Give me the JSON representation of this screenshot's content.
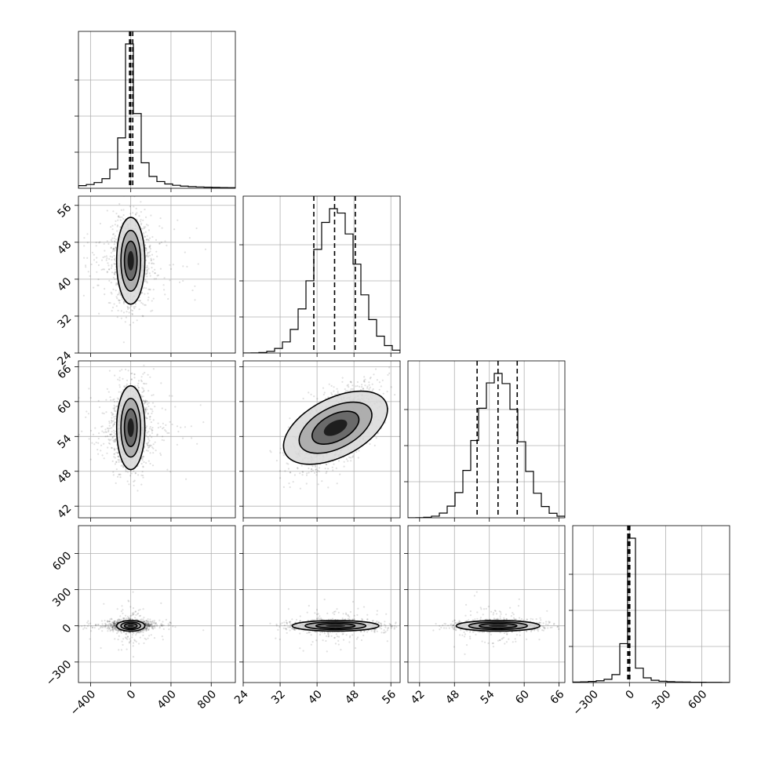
{
  "chart_data": {
    "type": "corner",
    "grid": true,
    "dimensions": [
      {
        "range": [
          -520,
          1040
        ],
        "ticks": [
          -400,
          0,
          400,
          800
        ],
        "tick_labels": [
          "−400",
          "0",
          "400",
          "800"
        ],
        "center": 0,
        "sigma": 70,
        "quantiles": [
          -12,
          0,
          20
        ]
      },
      {
        "range": [
          24,
          58
        ],
        "ticks": [
          24,
          32,
          40,
          48,
          56
        ],
        "tick_labels": [
          "24",
          "32",
          "40",
          "48",
          "56"
        ],
        "center": 44,
        "sigma": 4.7,
        "quantiles": [
          39.3,
          43.8,
          48.3
        ]
      },
      {
        "range": [
          40,
          67
        ],
        "ticks": [
          42,
          48,
          54,
          60,
          66
        ],
        "tick_labels": [
          "42",
          "48",
          "54",
          "60",
          "66"
        ],
        "center": 55.5,
        "sigma": 3.6,
        "quantiles": [
          51.9,
          55.5,
          58.8
        ]
      },
      {
        "range": [
          -470,
          830
        ],
        "ticks": [
          -300,
          0,
          300,
          600
        ],
        "tick_labels": [
          "−300",
          "0",
          "300",
          "600"
        ],
        "center": 0,
        "sigma": 22,
        "quantiles": [
          -14,
          -3,
          3
        ]
      }
    ],
    "correlations": [
      {
        "pair": [
          1,
          0
        ],
        "rho": 0.0
      },
      {
        "pair": [
          2,
          0
        ],
        "rho": 0.0
      },
      {
        "pair": [
          2,
          1
        ],
        "rho": 0.6
      },
      {
        "pair": [
          3,
          0
        ],
        "rho": 0.0
      },
      {
        "pair": [
          3,
          1
        ],
        "rho": 0.0
      },
      {
        "pair": [
          3,
          2
        ],
        "rho": 0.0
      }
    ],
    "colors": {
      "samples": "#000000",
      "grid": "#b0b0b0",
      "background": "#ffffff"
    }
  }
}
